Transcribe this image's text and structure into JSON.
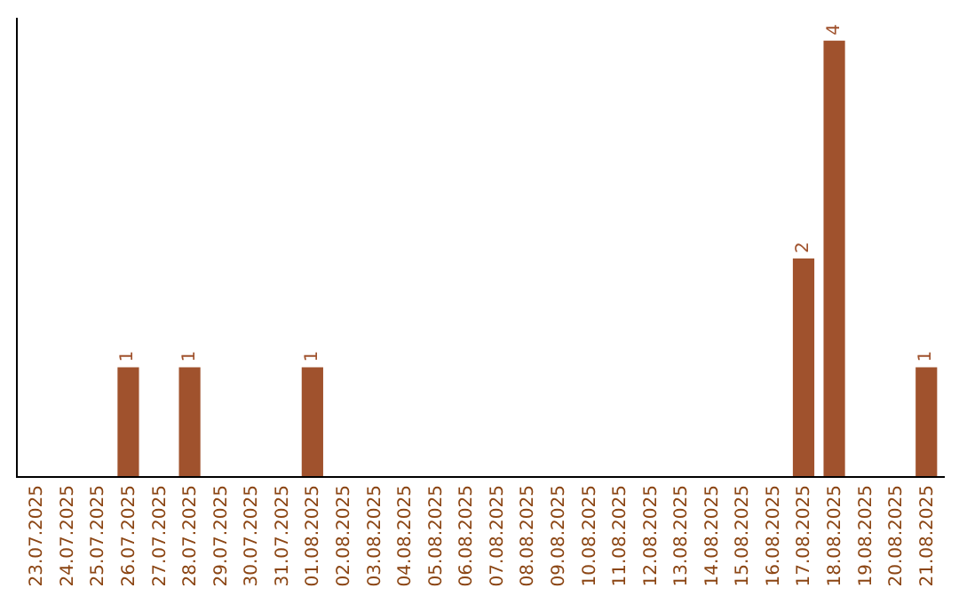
{
  "chart_data": {
    "type": "bar",
    "categories": [
      "23.07.2025",
      "24.07.2025",
      "25.07.2025",
      "26.07.2025",
      "27.07.2025",
      "28.07.2025",
      "29.07.2025",
      "30.07.2025",
      "31.07.2025",
      "01.08.2025",
      "02.08.2025",
      "03.08.2025",
      "04.08.2025",
      "05.08.2025",
      "06.08.2025",
      "07.08.2025",
      "08.08.2025",
      "09.08.2025",
      "10.08.2025",
      "11.08.2025",
      "12.08.2025",
      "13.08.2025",
      "14.08.2025",
      "15.08.2025",
      "16.08.2025",
      "17.08.2025",
      "18.08.2025",
      "19.08.2025",
      "20.08.2025",
      "21.08.2025"
    ],
    "values": [
      0,
      0,
      0,
      1,
      0,
      1,
      0,
      0,
      0,
      1,
      0,
      0,
      0,
      0,
      0,
      0,
      0,
      0,
      0,
      0,
      0,
      0,
      0,
      0,
      0,
      2,
      4,
      0,
      0,
      1
    ],
    "color": "#a0522d",
    "value_labels": [
      null,
      null,
      null,
      "1",
      null,
      "1",
      null,
      null,
      null,
      "1",
      null,
      null,
      null,
      null,
      null,
      null,
      null,
      null,
      null,
      null,
      null,
      null,
      null,
      null,
      null,
      "2",
      "4",
      null,
      null,
      "1"
    ],
    "grid": false,
    "legend": false
  }
}
